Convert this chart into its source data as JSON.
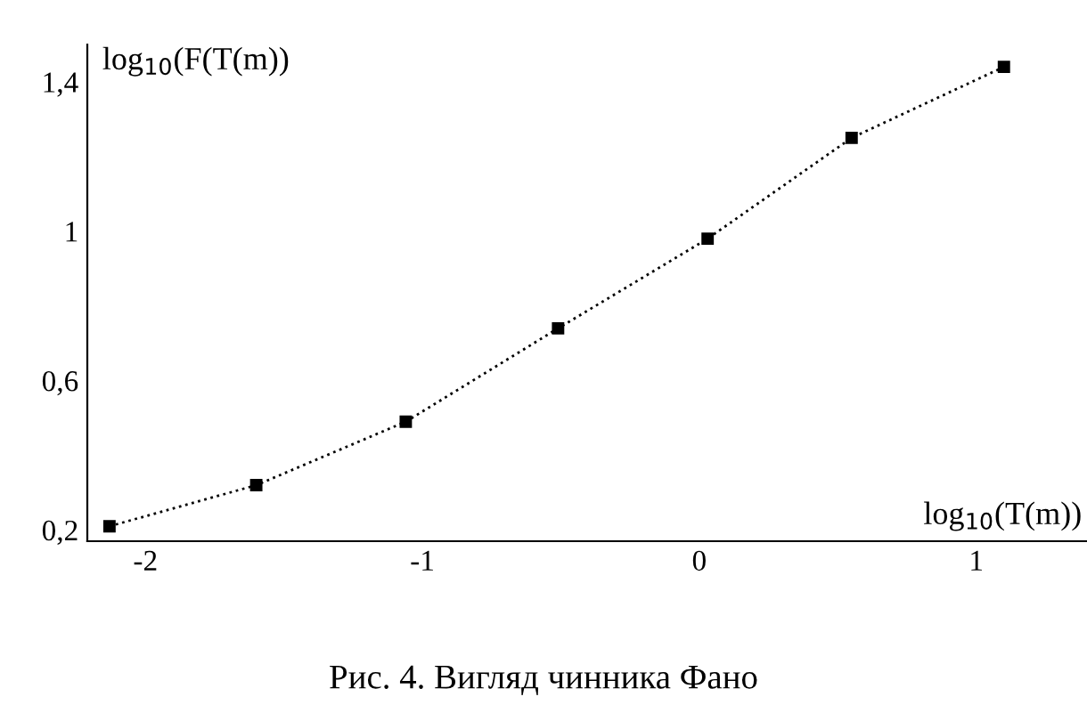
{
  "chart_data": {
    "type": "line",
    "xlabel": "log$_{10}$(T(m))",
    "ylabel": "log$_{10}$(F(T(m))",
    "annotations": [
      "Рис. 4. Вигляд чинника Фано"
    ],
    "x": [
      -2.13,
      -1.6,
      -1.06,
      -0.51,
      0.03,
      0.55,
      1.1
    ],
    "series": [
      {
        "color": "#000000",
        "values": [
          0.21,
          0.32,
          0.49,
          0.74,
          0.98,
          1.25,
          1.44
        ]
      }
    ],
    "xlim": [
      -2.21,
      1.4
    ],
    "ylim": [
      0.17,
      1.5
    ],
    "xticks": [
      {
        "value": -2,
        "label": "-2"
      },
      {
        "value": -1,
        "label": "-1"
      },
      0,
      1
    ],
    "yticks": [
      {
        "value": 0.2,
        "label": "0,2"
      },
      {
        "value": 0.6,
        "label": "0,6"
      },
      1,
      {
        "value": 1.4,
        "label": "1,4"
      }
    ],
    "grid": false,
    "legend": false,
    "marker": "square",
    "line_style": "dotted"
  }
}
